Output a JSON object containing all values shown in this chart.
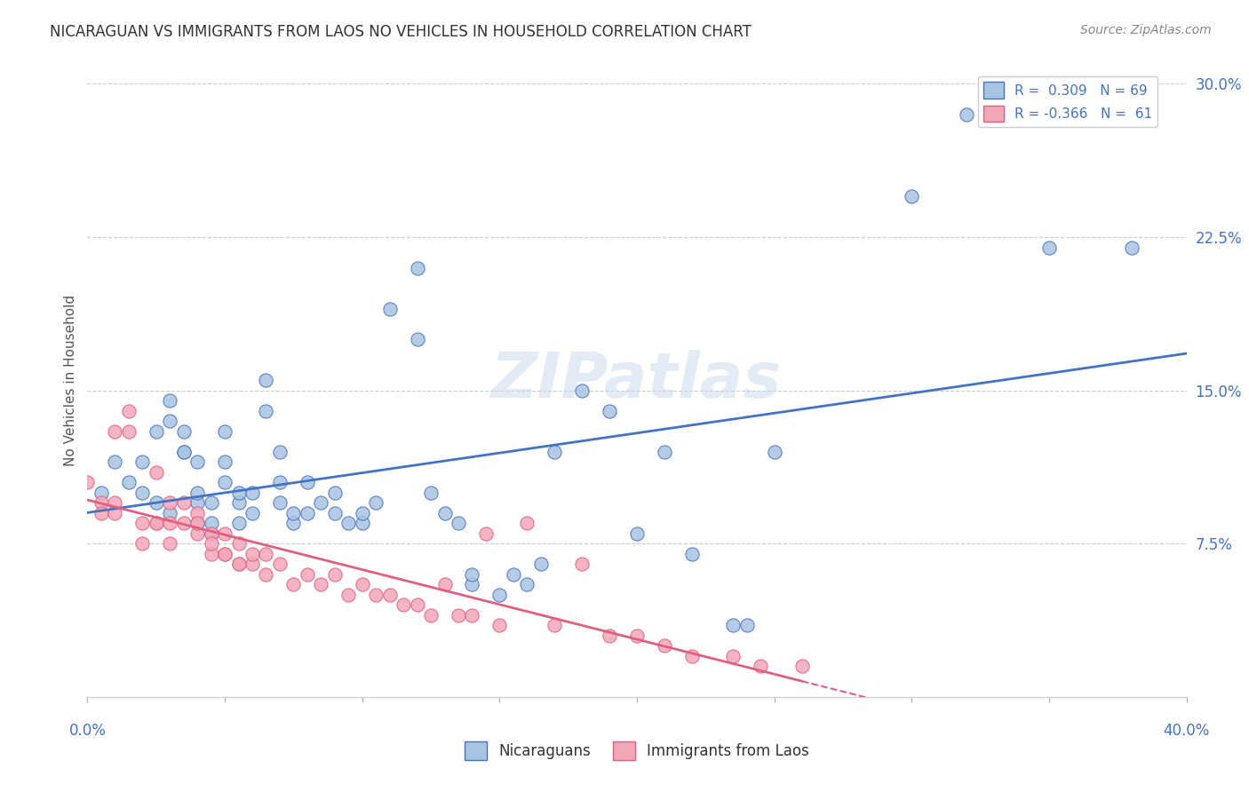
{
  "title": "NICARAGUAN VS IMMIGRANTS FROM LAOS NO VEHICLES IN HOUSEHOLD CORRELATION CHART",
  "source": "Source: ZipAtlas.com",
  "ylabel": "No Vehicles in Household",
  "xlim": [
    0.0,
    0.4
  ],
  "ylim": [
    0.0,
    0.31
  ],
  "r_blue": 0.309,
  "n_blue": 69,
  "r_pink": -0.366,
  "n_pink": 61,
  "legend_label_blue": "Nicaraguans",
  "legend_label_pink": "Immigrants from Laos",
  "blue_color": "#a8c4e0",
  "pink_color": "#f4a7b9",
  "blue_line_color": "#4472c4",
  "pink_line_color": "#e06080",
  "blue_scatter_x": [
    0.02,
    0.025,
    0.03,
    0.03,
    0.035,
    0.035,
    0.04,
    0.04,
    0.04,
    0.045,
    0.045,
    0.05,
    0.05,
    0.05,
    0.055,
    0.055,
    0.055,
    0.06,
    0.06,
    0.065,
    0.065,
    0.07,
    0.07,
    0.07,
    0.075,
    0.075,
    0.08,
    0.08,
    0.085,
    0.09,
    0.09,
    0.095,
    0.1,
    0.1,
    0.105,
    0.11,
    0.12,
    0.12,
    0.125,
    0.13,
    0.135,
    0.14,
    0.14,
    0.15,
    0.155,
    0.16,
    0.165,
    0.17,
    0.18,
    0.19,
    0.2,
    0.21,
    0.22,
    0.235,
    0.24,
    0.25,
    0.3,
    0.32,
    0.35,
    0.38,
    0.005,
    0.01,
    0.015,
    0.02,
    0.025,
    0.03,
    0.035,
    0.04,
    0.045
  ],
  "blue_scatter_y": [
    0.115,
    0.13,
    0.135,
    0.145,
    0.12,
    0.13,
    0.095,
    0.1,
    0.115,
    0.08,
    0.095,
    0.105,
    0.115,
    0.13,
    0.085,
    0.095,
    0.1,
    0.09,
    0.1,
    0.14,
    0.155,
    0.095,
    0.105,
    0.12,
    0.085,
    0.09,
    0.09,
    0.105,
    0.095,
    0.09,
    0.1,
    0.085,
    0.085,
    0.09,
    0.095,
    0.19,
    0.175,
    0.21,
    0.1,
    0.09,
    0.085,
    0.055,
    0.06,
    0.05,
    0.06,
    0.055,
    0.065,
    0.12,
    0.15,
    0.14,
    0.08,
    0.12,
    0.07,
    0.035,
    0.035,
    0.12,
    0.245,
    0.285,
    0.22,
    0.22,
    0.1,
    0.115,
    0.105,
    0.1,
    0.095,
    0.09,
    0.12,
    0.085,
    0.085
  ],
  "pink_scatter_x": [
    0.005,
    0.01,
    0.01,
    0.015,
    0.02,
    0.025,
    0.025,
    0.03,
    0.03,
    0.035,
    0.035,
    0.04,
    0.04,
    0.045,
    0.045,
    0.05,
    0.05,
    0.055,
    0.055,
    0.06,
    0.06,
    0.065,
    0.065,
    0.07,
    0.075,
    0.08,
    0.085,
    0.09,
    0.095,
    0.1,
    0.105,
    0.11,
    0.115,
    0.12,
    0.125,
    0.13,
    0.135,
    0.14,
    0.145,
    0.15,
    0.16,
    0.17,
    0.18,
    0.19,
    0.2,
    0.21,
    0.22,
    0.235,
    0.245,
    0.26,
    0.0,
    0.005,
    0.01,
    0.015,
    0.02,
    0.025,
    0.03,
    0.04,
    0.045,
    0.05,
    0.055
  ],
  "pink_scatter_y": [
    0.095,
    0.13,
    0.095,
    0.14,
    0.085,
    0.085,
    0.11,
    0.085,
    0.095,
    0.095,
    0.085,
    0.08,
    0.09,
    0.07,
    0.08,
    0.07,
    0.08,
    0.065,
    0.075,
    0.065,
    0.07,
    0.06,
    0.07,
    0.065,
    0.055,
    0.06,
    0.055,
    0.06,
    0.05,
    0.055,
    0.05,
    0.05,
    0.045,
    0.045,
    0.04,
    0.055,
    0.04,
    0.04,
    0.08,
    0.035,
    0.085,
    0.035,
    0.065,
    0.03,
    0.03,
    0.025,
    0.02,
    0.02,
    0.015,
    0.015,
    0.105,
    0.09,
    0.09,
    0.13,
    0.075,
    0.085,
    0.075,
    0.085,
    0.075,
    0.07,
    0.065
  ]
}
